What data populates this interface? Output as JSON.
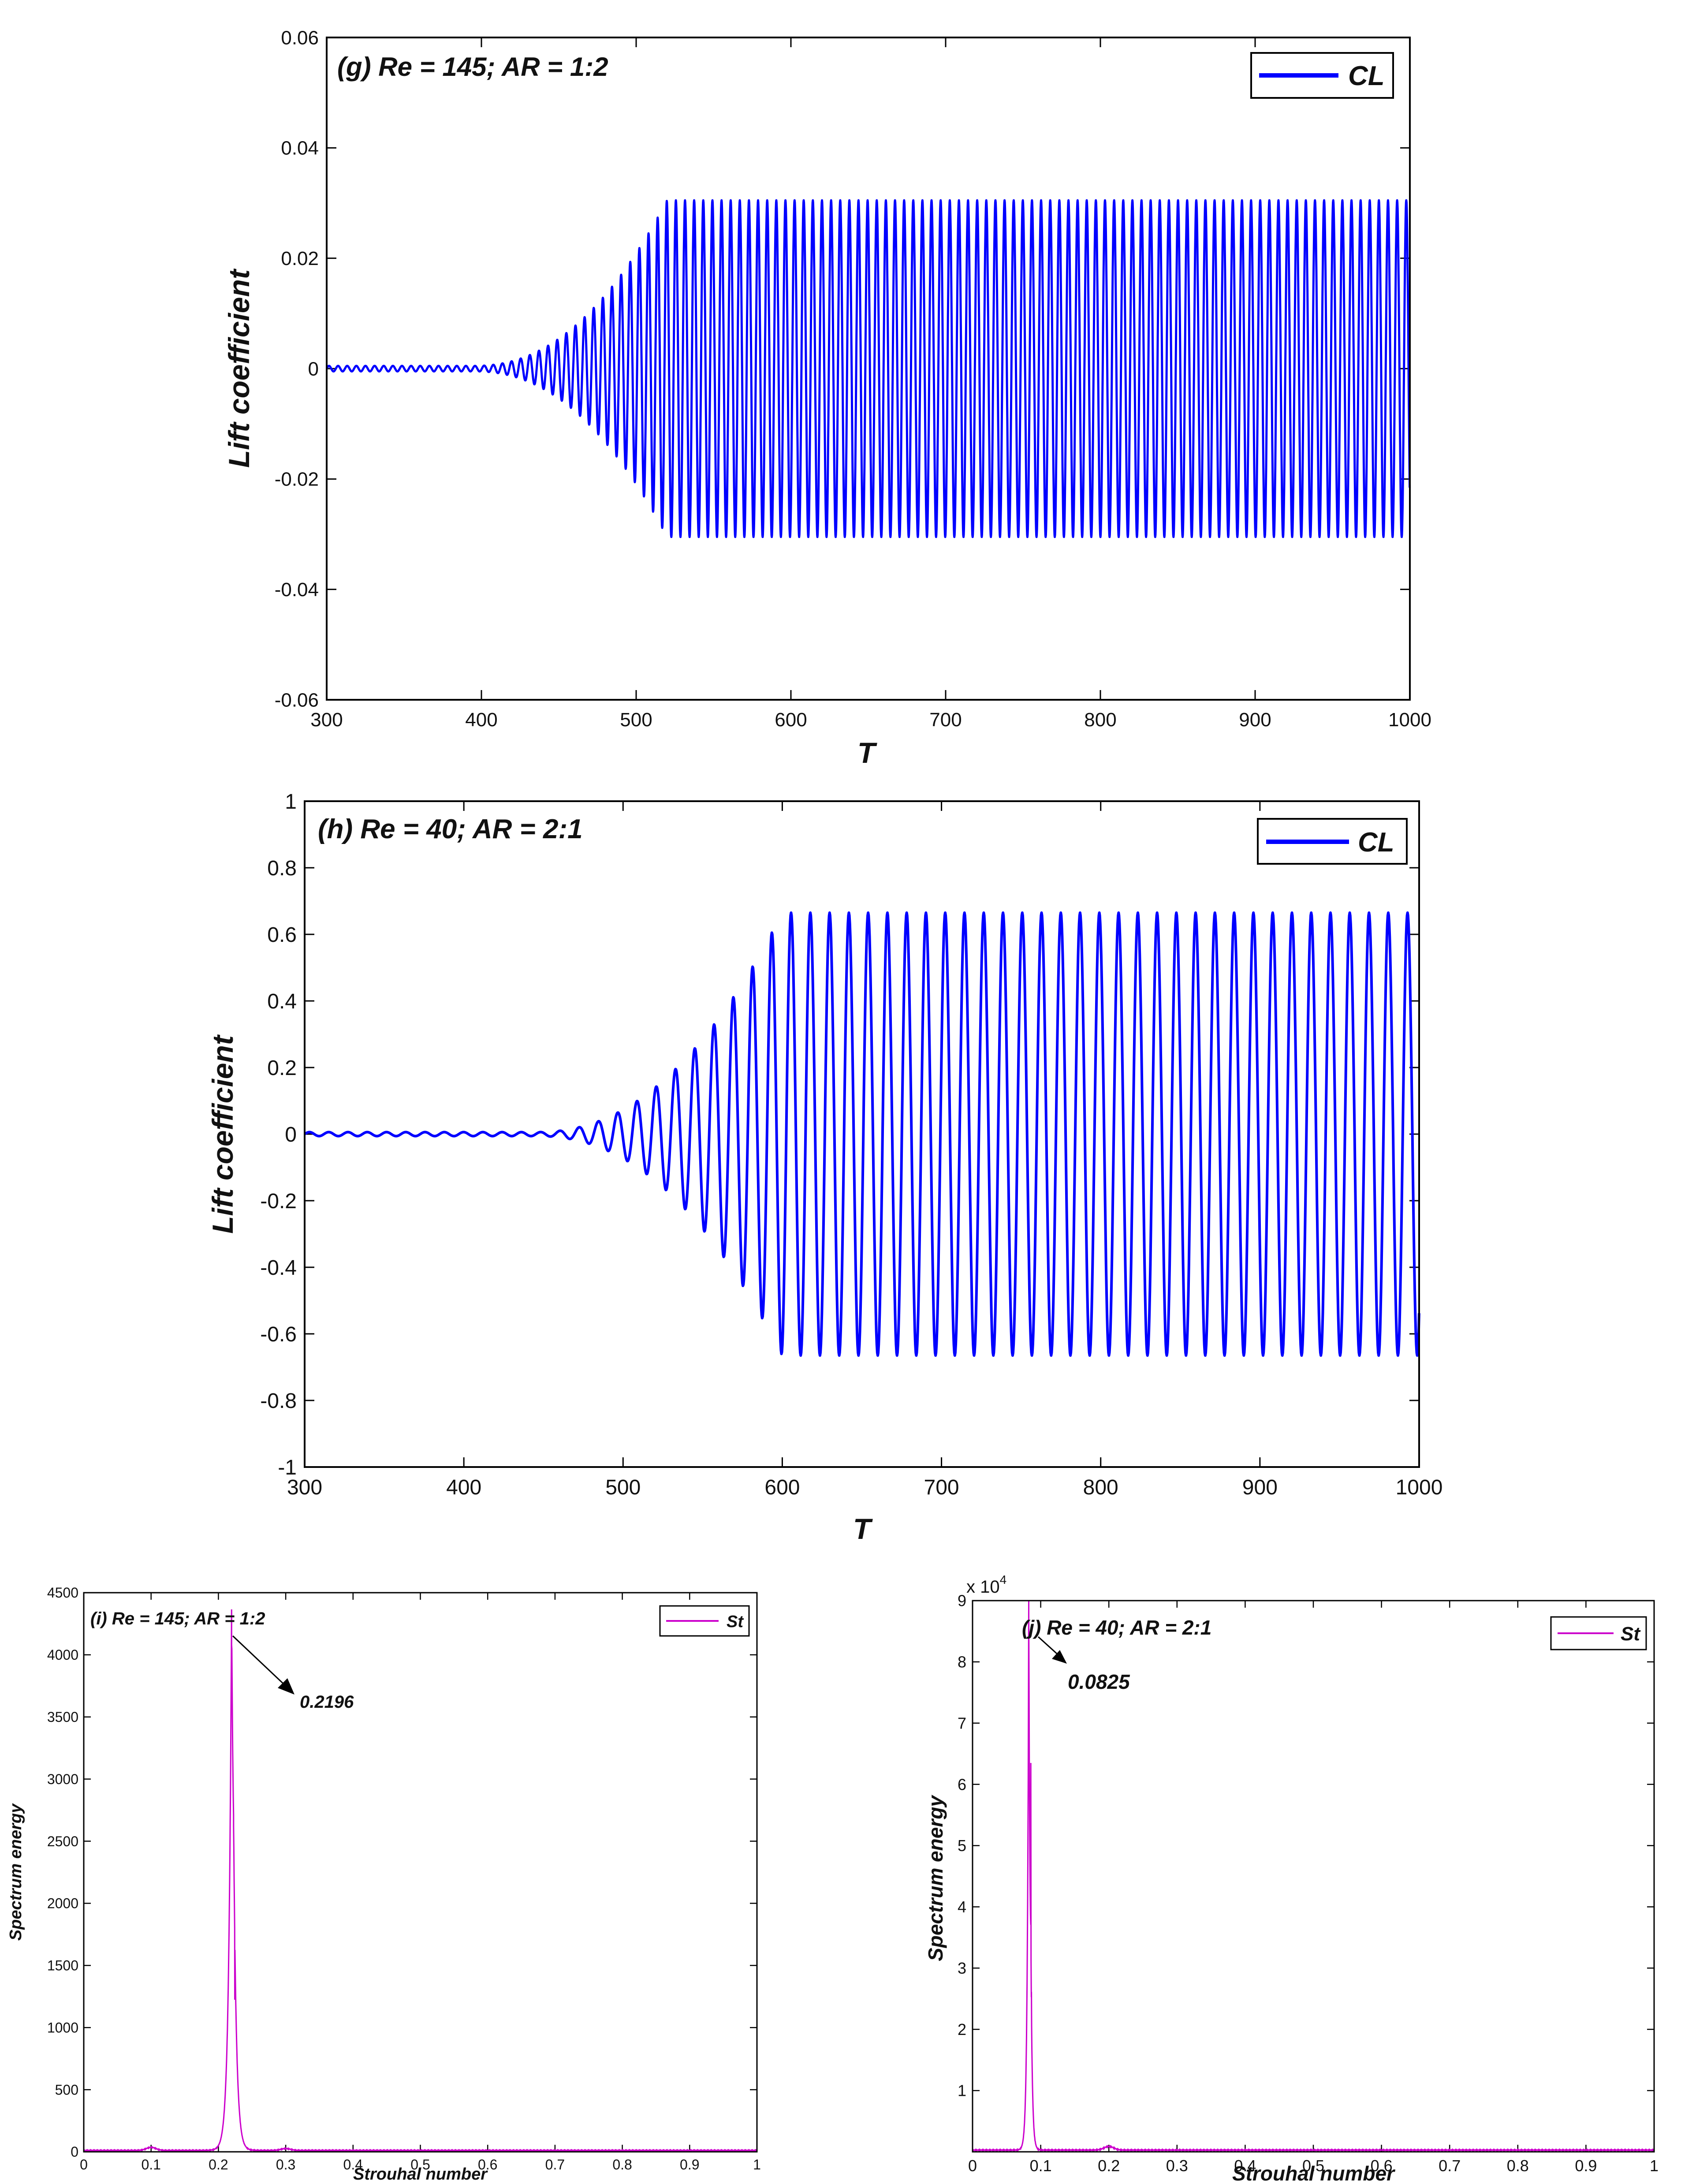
{
  "chart_data": [
    {
      "id": "g",
      "type": "line",
      "title": "(g) Re = 145; AR = 1:2",
      "xlabel": "T",
      "ylabel": "Lift coefficient",
      "xlim": [
        300,
        1000
      ],
      "ylim": [
        -0.06,
        0.06
      ],
      "xticks": [
        300,
        400,
        500,
        600,
        700,
        800,
        900,
        1000
      ],
      "yticks": [
        -0.06,
        -0.04,
        -0.02,
        0,
        0.02,
        0.04,
        0.06
      ],
      "xtick_labels": [
        "300",
        "400",
        "500",
        "600",
        "700",
        "800",
        "900",
        "1000"
      ],
      "ytick_labels": [
        "-0.06",
        "-0.04",
        "-0.02",
        "0",
        "0.02",
        "0.04",
        "0.06"
      ],
      "legend": [
        "CL"
      ],
      "legend_position": "top-right",
      "color": "#0000ff",
      "series": [
        {
          "name": "CL",
          "signal": {
            "amplitude_final": 0.0305,
            "oscillation_period": 5.9,
            "growth_onset_T": 395,
            "saturation_T": 520,
            "initial_amplitude": 0.0005
          }
        }
      ]
    },
    {
      "id": "h",
      "type": "line",
      "title": "(h) Re = 40; AR = 2:1",
      "xlabel": "T",
      "ylabel": "Lift coefficient",
      "xlim": [
        300,
        1000
      ],
      "ylim": [
        -1,
        1
      ],
      "xticks": [
        300,
        400,
        500,
        600,
        700,
        800,
        900,
        1000
      ],
      "yticks": [
        -1,
        -0.8,
        -0.6,
        -0.4,
        -0.2,
        0,
        0.2,
        0.4,
        0.6,
        0.8,
        1
      ],
      "xtick_labels": [
        "300",
        "400",
        "500",
        "600",
        "700",
        "800",
        "900",
        "1000"
      ],
      "ytick_labels": [
        "-1",
        "-0.8",
        "-0.6",
        "-0.4",
        "-0.2",
        "0",
        "0.2",
        "0.4",
        "0.6",
        "0.8",
        "1"
      ],
      "legend": [
        "CL"
      ],
      "legend_position": "top-right",
      "color": "#0000ff",
      "series": [
        {
          "name": "CL",
          "signal": {
            "amplitude_final": 0.665,
            "oscillation_period": 12.1,
            "growth_onset_T": 445,
            "saturation_T": 600,
            "initial_amplitude": 0.006
          }
        }
      ]
    },
    {
      "id": "i",
      "type": "line",
      "title": "(i) Re = 145; AR = 1:2",
      "xlabel": "Strouhal number",
      "ylabel": "Spectrum energy",
      "xlim": [
        0,
        1
      ],
      "ylim": [
        0,
        4500
      ],
      "xticks": [
        0,
        0.1,
        0.2,
        0.3,
        0.4,
        0.5,
        0.6,
        0.7,
        0.8,
        0.9,
        1
      ],
      "yticks": [
        0,
        500,
        1000,
        1500,
        2000,
        2500,
        3000,
        3500,
        4000,
        4500
      ],
      "xtick_labels": [
        "0",
        "0.1",
        "0.2",
        "0.3",
        "0.4",
        "0.5",
        "0.6",
        "0.7",
        "0.8",
        "0.9",
        "1"
      ],
      "ytick_labels": [
        "0",
        "500",
        "1000",
        "1500",
        "2000",
        "2500",
        "3000",
        "3500",
        "4000",
        "4500"
      ],
      "y_exponent_label": "",
      "legend": [
        "St"
      ],
      "legend_position": "top-right",
      "color": "#cc00cc",
      "annotation": {
        "text": "0.2196",
        "x": 0.2196,
        "y": 4080
      },
      "series": [
        {
          "name": "St",
          "peak": {
            "x": 0.2196,
            "y": 4080
          },
          "secondary_peak": {
            "x": 0.2225,
            "y": 2620
          },
          "peak_width": 0.012,
          "baseline": 8,
          "bumps": [
            {
              "x": 0.1,
              "y": 25
            },
            {
              "x": 0.3,
              "y": 15
            }
          ]
        }
      ]
    },
    {
      "id": "j",
      "type": "line",
      "title": "(j) Re = 40; AR = 2:1",
      "xlabel": "Strouhal number",
      "ylabel": "Spectrum energy",
      "xlim": [
        0,
        1
      ],
      "ylim": [
        0,
        9
      ],
      "xticks": [
        0,
        0.1,
        0.2,
        0.3,
        0.4,
        0.5,
        0.6,
        0.7,
        0.8,
        0.9,
        1
      ],
      "yticks": [
        1,
        2,
        3,
        4,
        5,
        6,
        7,
        8,
        9
      ],
      "xtick_labels": [
        "0",
        "0.1",
        "0.2",
        "0.3",
        "0.4",
        "0.5",
        "0.6",
        "0.7",
        "0.8",
        "0.9",
        "1"
      ],
      "ytick_labels": [
        "1",
        "2",
        "3",
        "4",
        "5",
        "6",
        "7",
        "8",
        "9"
      ],
      "y_exponent_label": "x 10",
      "y_exponent_power": "4",
      "legend": [
        "St"
      ],
      "legend_position": "top-right",
      "color": "#cc00cc",
      "annotation": {
        "text": "0.0825",
        "x": 0.0825,
        "y": 8.7
      },
      "series": [
        {
          "name": "St",
          "peak": {
            "x": 0.0825,
            "y": 8.7
          },
          "secondary_peak": {
            "x": 0.0855,
            "y": 6.35
          },
          "peak_width": 0.006,
          "baseline": 0.02,
          "bumps": [
            {
              "x": 0.2,
              "y": 0.06
            }
          ]
        }
      ]
    }
  ]
}
